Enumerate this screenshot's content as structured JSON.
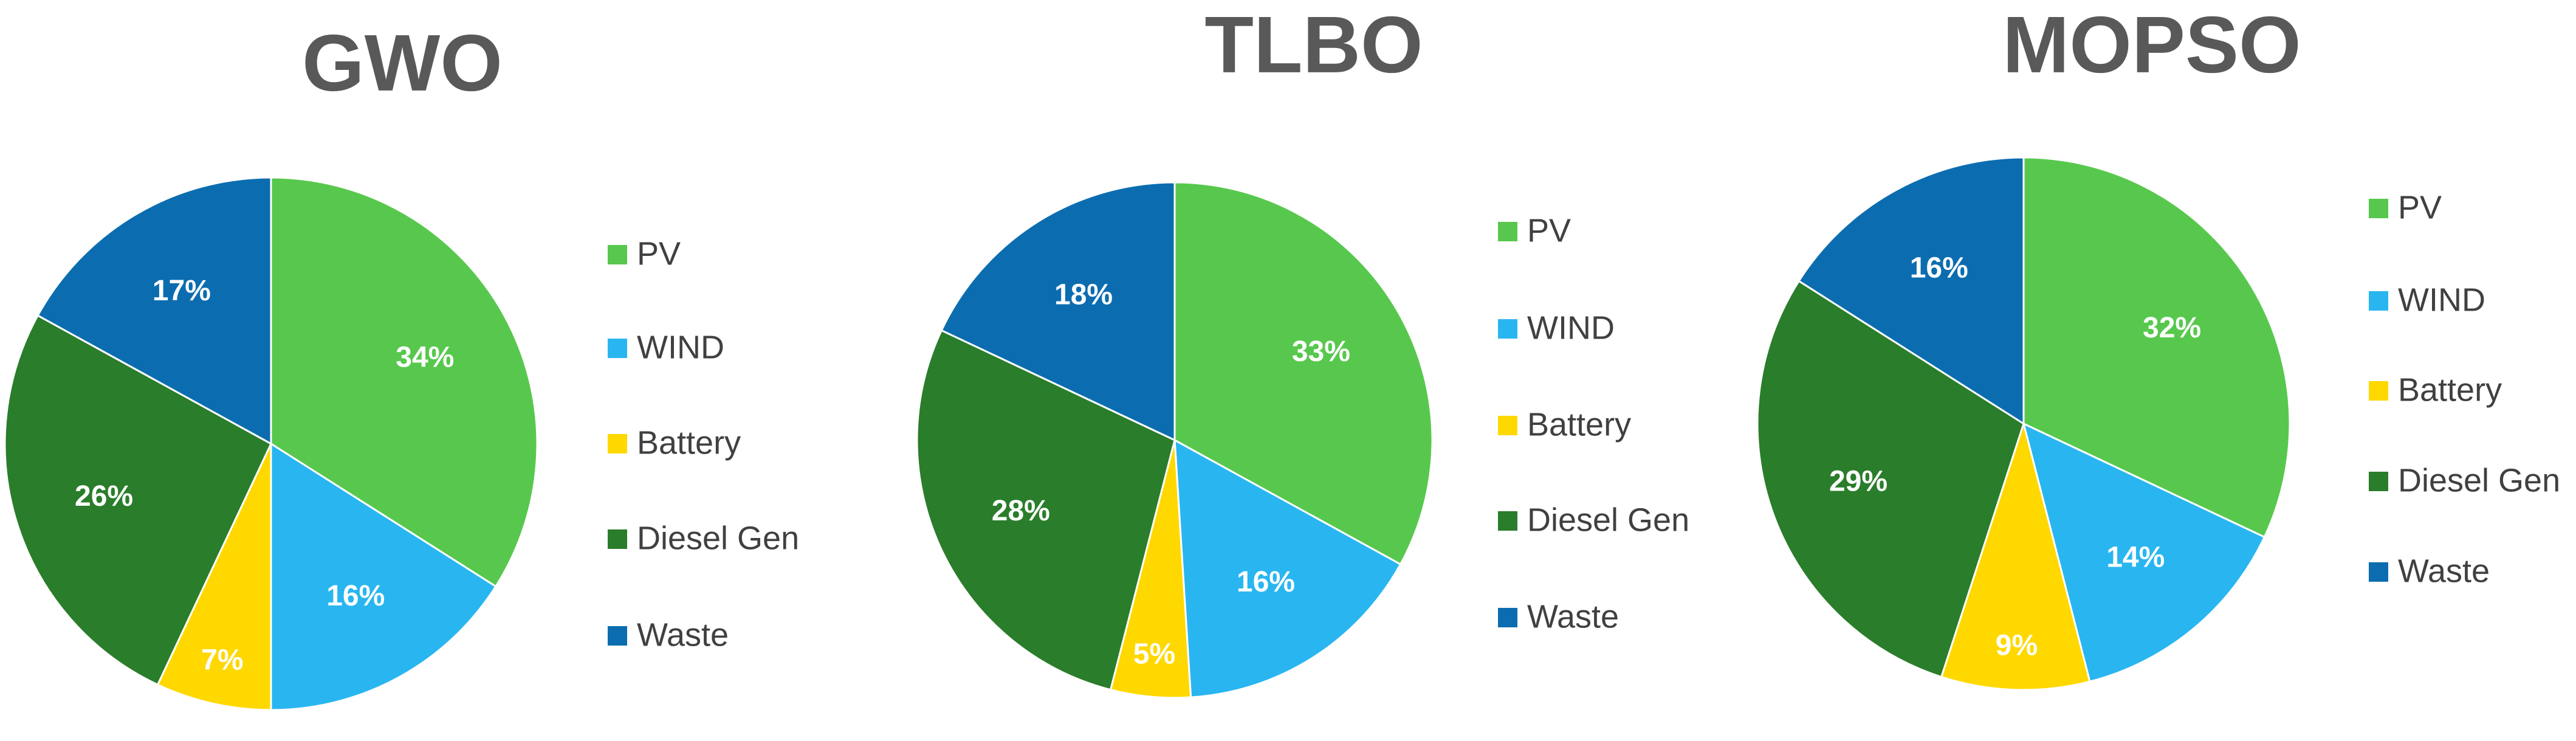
{
  "chart_data": [
    {
      "type": "pie",
      "title": "GWO",
      "categories": [
        "PV",
        "WIND",
        "Battery",
        "Diesel Gen",
        "Waste"
      ],
      "values": [
        34,
        16,
        7,
        26,
        17
      ],
      "value_labels": [
        "34%",
        "16%",
        "7%",
        "26%",
        "17%"
      ],
      "colors": [
        "#57c84d",
        "#29b6f0",
        "#ffd800",
        "#2a7d2a",
        "#0b6db0"
      ]
    },
    {
      "type": "pie",
      "title": "TLBO",
      "categories": [
        "PV",
        "WIND",
        "Battery",
        "Diesel Gen",
        "Waste"
      ],
      "values": [
        33,
        16,
        5,
        28,
        18
      ],
      "value_labels": [
        "33%",
        "16%",
        "5%",
        "28%",
        "18%"
      ],
      "colors": [
        "#57c84d",
        "#29b6f0",
        "#ffd800",
        "#2a7d2a",
        "#0b6db0"
      ]
    },
    {
      "type": "pie",
      "title": "MOPSO",
      "categories": [
        "PV",
        "WIND",
        "Battery",
        "Diesel Gen",
        "Waste"
      ],
      "values": [
        32,
        14,
        9,
        29,
        16
      ],
      "value_labels": [
        "32%",
        "14%",
        "9%",
        "29%",
        "16%"
      ],
      "colors": [
        "#57c84d",
        "#29b6f0",
        "#ffd800",
        "#2a7d2a",
        "#0b6db0"
      ]
    }
  ]
}
